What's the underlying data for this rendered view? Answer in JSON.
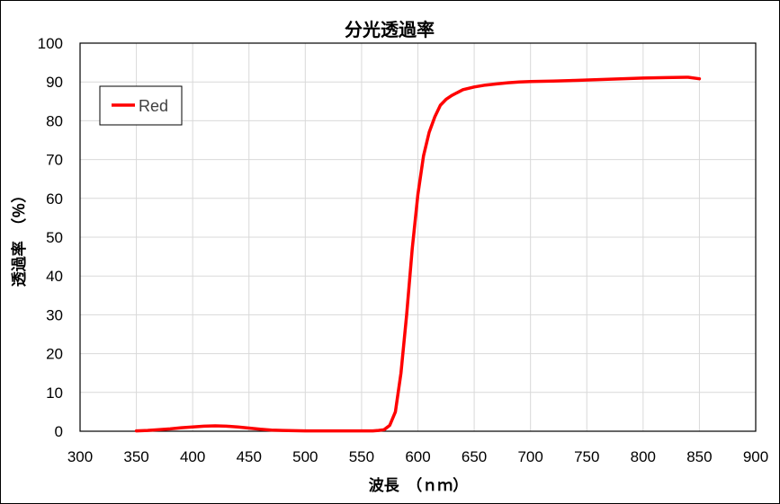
{
  "chart_data": {
    "type": "line",
    "title": "分光透過率",
    "xlabel": "波長　（ｎｍ）",
    "ylabel": "透過率　（％）",
    "xlim": [
      300,
      900
    ],
    "ylim": [
      0,
      100
    ],
    "x_ticks": [
      300,
      350,
      400,
      450,
      500,
      550,
      600,
      650,
      700,
      750,
      800,
      850,
      900
    ],
    "y_ticks": [
      0,
      10,
      20,
      30,
      40,
      50,
      60,
      70,
      80,
      90,
      100
    ],
    "grid": true,
    "legend_position": "top-left",
    "series": [
      {
        "name": "Red",
        "color": "#ff0000",
        "x": [
          350,
          360,
          370,
          380,
          390,
          400,
          410,
          420,
          430,
          440,
          450,
          460,
          470,
          480,
          500,
          520,
          540,
          560,
          565,
          570,
          575,
          580,
          585,
          590,
          595,
          600,
          605,
          610,
          615,
          620,
          625,
          630,
          640,
          650,
          660,
          670,
          680,
          690,
          700,
          720,
          740,
          760,
          780,
          800,
          820,
          840,
          850
        ],
        "y": [
          0.1,
          0.2,
          0.4,
          0.6,
          0.9,
          1.1,
          1.3,
          1.4,
          1.3,
          1.1,
          0.8,
          0.5,
          0.3,
          0.2,
          0.1,
          0.1,
          0.1,
          0.1,
          0.2,
          0.4,
          1.5,
          5,
          15,
          30,
          47,
          61,
          71,
          77,
          81,
          84,
          85.5,
          86.5,
          88,
          88.7,
          89.2,
          89.5,
          89.8,
          90,
          90.1,
          90.2,
          90.4,
          90.6,
          90.8,
          91,
          91.1,
          91.2,
          90.8
        ]
      }
    ]
  }
}
